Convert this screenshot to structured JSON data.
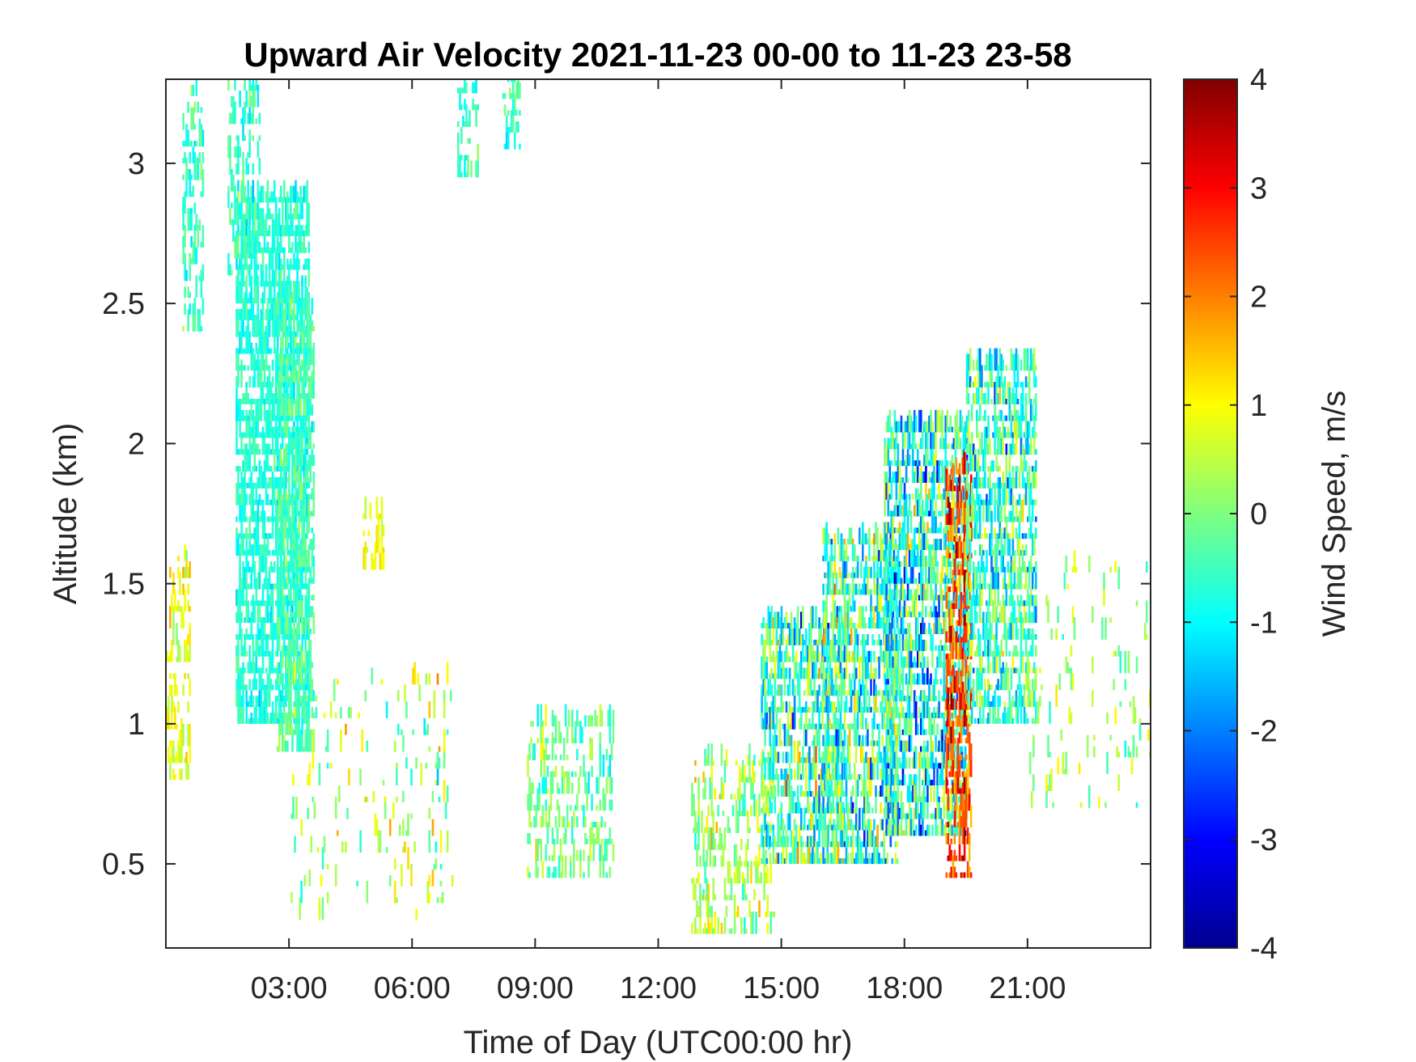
{
  "chart_data": {
    "type": "heatmap",
    "title": "Upward Air Velocity 2021-11-23 00-00 to 11-23 23-58",
    "xlabel": "Time of Day (UTC00:00 hr)",
    "ylabel": "Altitude (km)",
    "colorbar_label": "Wind Speed, m/s",
    "xlim": [
      0,
      24
    ],
    "ylim": [
      0.2,
      3.3
    ],
    "clim": [
      -4,
      4
    ],
    "colormap": "jet",
    "x_ticks": [
      3,
      6,
      9,
      12,
      15,
      18,
      21
    ],
    "x_tick_labels": [
      "03:00",
      "06:00",
      "09:00",
      "12:00",
      "15:00",
      "18:00",
      "21:00"
    ],
    "y_ticks": [
      0.5,
      1,
      1.5,
      2,
      2.5,
      3
    ],
    "y_tick_labels": [
      "0.5",
      "1",
      "1.5",
      "2",
      "2.5",
      "3"
    ],
    "colorbar_ticks": [
      -4,
      -3,
      -2,
      -1,
      0,
      1,
      2,
      3,
      4
    ],
    "colorbar_tick_labels": [
      "-4",
      "-3",
      "-2",
      "-1",
      "0",
      "1",
      "2",
      "3",
      "4"
    ],
    "grid": false,
    "regions": [
      {
        "x": [
          0.4,
          0.9
        ],
        "y": [
          2.4,
          3.3
        ],
        "mean": -0.6,
        "spread": 0.5,
        "density": 0.55
      },
      {
        "x": [
          0.0,
          0.6
        ],
        "y": [
          0.8,
          1.6
        ],
        "mean": 0.8,
        "spread": 0.6,
        "density": 0.5
      },
      {
        "x": [
          1.5,
          2.3
        ],
        "y": [
          2.6,
          3.3
        ],
        "mean": -0.5,
        "spread": 0.5,
        "density": 0.5
      },
      {
        "x": [
          1.7,
          3.5
        ],
        "y": [
          1.0,
          2.9
        ],
        "mean": -0.7,
        "spread": 0.4,
        "density": 0.85
      },
      {
        "x": [
          2.7,
          3.6
        ],
        "y": [
          0.9,
          2.5
        ],
        "mean": -0.4,
        "spread": 0.5,
        "density": 0.7
      },
      {
        "x": [
          3.0,
          7.0
        ],
        "y": [
          0.3,
          1.2
        ],
        "mean": 0.2,
        "spread": 0.9,
        "density": 0.12
      },
      {
        "x": [
          4.8,
          5.3
        ],
        "y": [
          1.55,
          1.75
        ],
        "mean": 0.9,
        "spread": 0.4,
        "density": 0.5
      },
      {
        "x": [
          7.1,
          7.6
        ],
        "y": [
          2.95,
          3.3
        ],
        "mean": -0.5,
        "spread": 0.5,
        "density": 0.6
      },
      {
        "x": [
          8.2,
          8.6
        ],
        "y": [
          3.05,
          3.3
        ],
        "mean": -0.5,
        "spread": 0.5,
        "density": 0.5
      },
      {
        "x": [
          8.8,
          10.9
        ],
        "y": [
          0.45,
          1.0
        ],
        "mean": -0.1,
        "spread": 0.7,
        "density": 0.45
      },
      {
        "x": [
          12.8,
          14.8
        ],
        "y": [
          0.25,
          0.9
        ],
        "mean": 0.3,
        "spread": 0.8,
        "density": 0.4
      },
      {
        "x": [
          14.5,
          16.5
        ],
        "y": [
          0.5,
          1.35
        ],
        "mean": -0.5,
        "spread": 1.4,
        "density": 0.75
      },
      {
        "x": [
          16.0,
          17.8
        ],
        "y": [
          0.5,
          1.7
        ],
        "mean": -0.4,
        "spread": 1.5,
        "density": 0.75
      },
      {
        "x": [
          17.5,
          19.5
        ],
        "y": [
          0.6,
          2.1
        ],
        "mean": -0.8,
        "spread": 1.5,
        "density": 0.8
      },
      {
        "x": [
          19.0,
          19.6
        ],
        "y": [
          0.45,
          1.9
        ],
        "mean": 2.4,
        "spread": 1.0,
        "density": 0.7
      },
      {
        "x": [
          19.5,
          21.2
        ],
        "y": [
          1.0,
          2.3
        ],
        "mean": -0.6,
        "spread": 1.2,
        "density": 0.75
      },
      {
        "x": [
          21.0,
          24.0
        ],
        "y": [
          0.7,
          1.6
        ],
        "mean": 0.2,
        "spread": 0.8,
        "density": 0.1
      }
    ]
  }
}
